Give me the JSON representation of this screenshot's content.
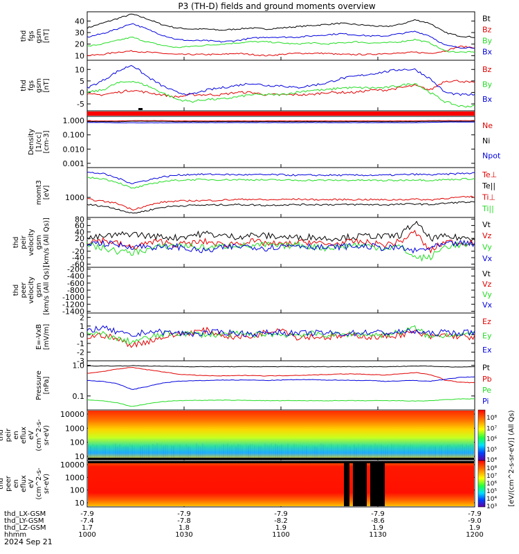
{
  "page": {
    "title": "P3 (TH-D) fields and ground moments overview",
    "date_label": "2024 Sep 21",
    "colors": {
      "black": "#000000",
      "red": "#e00000",
      "green": "#22dd22",
      "blue": "#0000dd",
      "bar_red": "#ff0000"
    }
  },
  "chart_data": [
    {
      "type": "line",
      "panel": "fgs_gsm_nT",
      "ylabel_lines": [
        "thd",
        "fgs",
        "gsm",
        "[nT]"
      ],
      "yticks": [
        "40",
        "30",
        "20",
        "10"
      ],
      "ylim": [
        6,
        48
      ],
      "series": [
        {
          "name": "Bt",
          "color": "#000000",
          "values": [
            34,
            38,
            42,
            46,
            42,
            37,
            34,
            33,
            33,
            32,
            33,
            34,
            33,
            34,
            35,
            36,
            37,
            38,
            37,
            36,
            35,
            37,
            41,
            38,
            30,
            27,
            26
          ]
        },
        {
          "name": "Bz",
          "color": "#e00000",
          "values": [
            10,
            11,
            13,
            14,
            13,
            12,
            11,
            11,
            11,
            11,
            12,
            11,
            10,
            11,
            12,
            12,
            12,
            11,
            11,
            11,
            12,
            12,
            13,
            12,
            14,
            18,
            17
          ]
        },
        {
          "name": "By",
          "color": "#22dd22",
          "values": [
            18,
            20,
            23,
            26,
            22,
            19,
            17,
            18,
            19,
            20,
            21,
            22,
            22,
            21,
            20,
            21,
            20,
            21,
            22,
            21,
            21,
            22,
            24,
            21,
            14,
            13,
            13
          ]
        },
        {
          "name": "Bx",
          "color": "#0000dd",
          "values": [
            26,
            29,
            33,
            38,
            33,
            28,
            24,
            23,
            23,
            22,
            23,
            25,
            26,
            26,
            26,
            27,
            28,
            29,
            28,
            27,
            27,
            29,
            31,
            27,
            19,
            17,
            17
          ]
        }
      ]
    },
    {
      "type": "line",
      "panel": "fgs_gsm_nT_components",
      "ylabel_lines": [
        "thd",
        "fgs",
        "gsm",
        "[nT]"
      ],
      "yticks": [
        "10",
        "5",
        "0",
        "-5"
      ],
      "ylim": [
        -8,
        14
      ],
      "series": [
        {
          "name": "Bz",
          "color": "#e00000",
          "values": [
            -1,
            -1,
            0,
            1,
            0,
            -1,
            -2,
            -1,
            -1,
            -1,
            0,
            0,
            -1,
            -1,
            -1,
            -1,
            0,
            0,
            0,
            1,
            1,
            2,
            3,
            1,
            5,
            5,
            4
          ]
        },
        {
          "name": "By",
          "color": "#22dd22",
          "values": [
            0,
            1,
            4,
            5,
            3,
            0,
            -3,
            -4,
            -3,
            -3,
            -2,
            -1,
            -1,
            -1,
            0,
            1,
            1,
            2,
            2,
            2,
            2,
            3,
            4,
            0,
            -4,
            -6,
            -6
          ]
        },
        {
          "name": "Bx",
          "color": "#0000dd",
          "values": [
            2,
            5,
            9,
            12,
            7,
            3,
            0,
            -1,
            1,
            2,
            3,
            4,
            3,
            3,
            2,
            3,
            4,
            6,
            7,
            8,
            9,
            10,
            10,
            6,
            0,
            -1,
            -1
          ]
        }
      ]
    },
    {
      "type": "line",
      "panel": "density",
      "ylabel_lines": [
        "Density",
        "[1/cc]",
        "[cm-3]"
      ],
      "yticks": [
        "1.000",
        "0.100",
        "0.010",
        "0.001"
      ],
      "ylim": [
        0.0005,
        2
      ],
      "log": true,
      "series": [
        {
          "name": "Ne",
          "color": "#e00000",
          "values": [
            0.95,
            0.95,
            0.95,
            1.0,
            1.0,
            1.0,
            0.95,
            0.95,
            0.95,
            0.95,
            0.95,
            0.95,
            0.95,
            0.95,
            0.95,
            0.95,
            0.95,
            0.95,
            0.95,
            0.95,
            0.95,
            0.95,
            0.95,
            1.0,
            1.0,
            1.0,
            1.0
          ]
        },
        {
          "name": "Ni",
          "color": "#000000",
          "values": [
            0.85,
            0.85,
            0.85,
            0.9,
            0.9,
            0.9,
            0.85,
            0.85,
            0.85,
            0.85,
            0.85,
            0.85,
            0.85,
            0.85,
            0.85,
            0.85,
            0.85,
            0.85,
            0.85,
            0.85,
            0.85,
            0.85,
            0.85,
            0.9,
            0.9,
            0.9,
            0.9
          ]
        },
        {
          "name": "Npot",
          "color": "#0000dd",
          "values": [
            0.75,
            0.75,
            0.7,
            0.7,
            0.7,
            0.7,
            0.72,
            0.72,
            0.72,
            0.72,
            0.72,
            0.72,
            0.72,
            0.72,
            0.72,
            0.72,
            0.72,
            0.72,
            0.72,
            0.72,
            0.72,
            0.72,
            0.72,
            0.75,
            0.8,
            0.8,
            0.8
          ]
        }
      ]
    },
    {
      "type": "line",
      "panel": "moments_temperature",
      "ylabel_lines": [
        "momt3",
        "[eV]"
      ],
      "yticks": [
        "1000"
      ],
      "ylim": [
        300,
        6000
      ],
      "log": true,
      "series": [
        {
          "name": "Te⊥",
          "color": "#0000dd",
          "values": [
            4500,
            4200,
            3200,
            2300,
            2800,
            3400,
            3800,
            4000,
            4000,
            4000,
            3900,
            3900,
            3900,
            3900,
            3800,
            3800,
            3800,
            3800,
            3800,
            3800,
            3800,
            3900,
            4000,
            3900,
            4000,
            4200,
            4300
          ]
        },
        {
          "name": "Te||",
          "color": "#000000",
          "values": [
            650,
            600,
            500,
            380,
            450,
            550,
            600,
            620,
            630,
            640,
            650,
            640,
            620,
            640,
            650,
            650,
            650,
            650,
            650,
            650,
            640,
            660,
            680,
            650,
            700,
            750,
            750
          ]
        },
        {
          "name": "Ti⊥",
          "color": "#e00000",
          "values": [
            900,
            800,
            700,
            480,
            600,
            750,
            800,
            820,
            830,
            850,
            880,
            900,
            860,
            880,
            900,
            880,
            870,
            880,
            880,
            880,
            860,
            880,
            900,
            860,
            950,
            1000,
            1050
          ]
        },
        {
          "name": "Ti||",
          "color": "#22dd22",
          "values": [
            3300,
            3100,
            2500,
            1700,
            2100,
            2600,
            2800,
            2900,
            2900,
            2900,
            2900,
            2900,
            2850,
            2850,
            2800,
            2800,
            2800,
            2800,
            2800,
            2800,
            2750,
            2800,
            2900,
            2800,
            2900,
            3000,
            3100
          ]
        }
      ]
    },
    {
      "type": "line",
      "panel": "peir_velocity",
      "ylabel_lines": [
        "thd",
        "peir",
        "velocity",
        "gsm",
        "[km/s (All Qs)]"
      ],
      "yticks": [
        "80",
        "60",
        "40",
        "20",
        "0",
        "-20",
        "-40",
        "-60"
      ],
      "ylim": [
        -70,
        85
      ],
      "series": [
        {
          "name": "Vt",
          "color": "#000000",
          "values": [
            20,
            25,
            30,
            35,
            28,
            25,
            22,
            30,
            35,
            28,
            25,
            30,
            28,
            25,
            22,
            25,
            20,
            22,
            25,
            28,
            25,
            30,
            70,
            20,
            25,
            22,
            20
          ]
        },
        {
          "name": "Vz",
          "color": "#e00000",
          "values": [
            10,
            15,
            5,
            -10,
            5,
            10,
            0,
            5,
            10,
            0,
            5,
            10,
            5,
            0,
            5,
            10,
            0,
            5,
            10,
            5,
            0,
            10,
            40,
            -20,
            10,
            5,
            10
          ]
        },
        {
          "name": "Vy",
          "color": "#22dd22",
          "values": [
            0,
            -10,
            -20,
            -25,
            -15,
            -5,
            0,
            -5,
            -10,
            -5,
            0,
            -5,
            0,
            -5,
            0,
            -5,
            -10,
            -5,
            0,
            -5,
            -10,
            -5,
            -40,
            -40,
            -5,
            0,
            -5
          ]
        },
        {
          "name": "Vx",
          "color": "#0000dd",
          "values": [
            5,
            5,
            0,
            -5,
            -5,
            -10,
            -5,
            -15,
            -20,
            -10,
            -5,
            -5,
            -10,
            -5,
            0,
            -5,
            -10,
            -5,
            -5,
            -5,
            -10,
            -10,
            -20,
            -10,
            0,
            5,
            0
          ]
        }
      ]
    },
    {
      "type": "line",
      "panel": "peer_velocity",
      "ylabel_lines": [
        "thd",
        "peer",
        "velocity",
        "gsm",
        "[km/s (All Qs)]"
      ],
      "yticks": [
        "-200",
        "-400",
        "-600",
        "-800",
        "-1000",
        "-1200",
        "-1400"
      ],
      "ylim": [
        -1450,
        -150
      ],
      "series": [
        {
          "name": "Vt",
          "color": "#000000",
          "values": []
        },
        {
          "name": "Vz",
          "color": "#e00000",
          "values": []
        },
        {
          "name": "Vy",
          "color": "#22dd22",
          "values": []
        },
        {
          "name": "Vx",
          "color": "#0000dd",
          "values": []
        }
      ]
    },
    {
      "type": "line",
      "panel": "efield",
      "ylabel_lines": [
        "E=-VxB",
        "[mV/m]"
      ],
      "yticks": [
        "2",
        "1",
        "0",
        "-1",
        "-2",
        "-3"
      ],
      "ylim": [
        -3,
        2.5
      ],
      "series": [
        {
          "name": "Ez",
          "color": "#e00000",
          "values": [
            -0.3,
            0,
            -0.5,
            -1.2,
            -0.8,
            -0.3,
            0,
            0.3,
            0.5,
            0,
            -0.3,
            -0.2,
            0.3,
            0.8,
            -0.3,
            -0.2,
            -0.3,
            -0.2,
            0,
            -0.3,
            -0.2,
            0,
            0.3,
            -0.3,
            0,
            -0.2,
            -0.3
          ]
        },
        {
          "name": "Ey",
          "color": "#22dd22",
          "values": [
            0,
            0.1,
            -0.5,
            -0.8,
            -0.4,
            0,
            0.2,
            0.1,
            0,
            0,
            0.1,
            0,
            0.1,
            0,
            0,
            0.1,
            0,
            0,
            0.1,
            0,
            0,
            0.3,
            0.8,
            -0.3,
            0,
            0.1,
            0
          ]
        },
        {
          "name": "Ex",
          "color": "#0000dd",
          "values": [
            0.5,
            0.8,
            0.3,
            -0.2,
            0.4,
            0.3,
            0.2,
            0.1,
            0.2,
            0.3,
            0.2,
            0.1,
            0.2,
            0.3,
            0.1,
            0.2,
            0.2,
            0.1,
            0.2,
            0.3,
            0.2,
            0.3,
            0.4,
            0.1,
            0.3,
            0.2,
            0.3
          ]
        }
      ]
    },
    {
      "type": "line",
      "panel": "pressure",
      "ylabel_lines": [
        "Pressure",
        "[nPa]"
      ],
      "yticks": [
        "1.0",
        "0.1"
      ],
      "ylim": [
        0.035,
        1.4
      ],
      "log": true,
      "series": [
        {
          "name": "Pt",
          "color": "#000000",
          "values": [
            0.95,
            0.95,
            0.95,
            0.97,
            0.95,
            0.93,
            0.92,
            0.9,
            0.9,
            0.9,
            0.9,
            0.9,
            0.9,
            0.9,
            0.9,
            0.9,
            0.9,
            0.9,
            0.9,
            0.9,
            0.9,
            0.92,
            0.95,
            0.93,
            0.9,
            0.88,
            0.9
          ]
        },
        {
          "name": "Pb",
          "color": "#e00000",
          "values": [
            0.55,
            0.62,
            0.75,
            0.85,
            0.72,
            0.62,
            0.52,
            0.48,
            0.46,
            0.45,
            0.46,
            0.47,
            0.45,
            0.46,
            0.47,
            0.48,
            0.5,
            0.52,
            0.52,
            0.5,
            0.48,
            0.52,
            0.58,
            0.5,
            0.33,
            0.28,
            0.27
          ]
        },
        {
          "name": "Pe",
          "color": "#22dd22",
          "values": [
            0.075,
            0.07,
            0.06,
            0.045,
            0.055,
            0.065,
            0.07,
            0.072,
            0.072,
            0.073,
            0.072,
            0.072,
            0.07,
            0.07,
            0.07,
            0.07,
            0.07,
            0.07,
            0.07,
            0.07,
            0.07,
            0.07,
            0.068,
            0.07,
            0.075,
            0.08,
            0.08
          ]
        },
        {
          "name": "Pi",
          "color": "#0000dd",
          "values": [
            0.32,
            0.3,
            0.25,
            0.16,
            0.2,
            0.26,
            0.3,
            0.31,
            0.32,
            0.33,
            0.33,
            0.33,
            0.32,
            0.33,
            0.34,
            0.34,
            0.33,
            0.33,
            0.32,
            0.32,
            0.3,
            0.31,
            0.32,
            0.3,
            0.35,
            0.4,
            0.42
          ]
        }
      ]
    },
    {
      "type": "heatmap",
      "panel": "peir_en_eflux",
      "ylabel_lines": [
        "thd",
        "peir",
        "en",
        "eflux",
        "eV",
        "(cm^2-s-",
        "sr-eV)"
      ],
      "yticks": [
        "10000",
        "1000",
        "100",
        "10"
      ]
    },
    {
      "type": "heatmap",
      "panel": "peer_en_eflux",
      "ylabel_lines": [
        "thd",
        "peer",
        "en",
        "eflux",
        "eV",
        "(cm^2-s-",
        "sr-eV)"
      ],
      "yticks": [
        "10000",
        "1000",
        "100",
        "10"
      ]
    }
  ],
  "legends": [
    [
      "Bt",
      "Bz",
      "By",
      "Bx"
    ],
    [
      "Bz",
      "By",
      "Bx"
    ],
    [
      "Ne",
      "Ni",
      "Npot"
    ],
    [
      "Te⊥",
      "Te||",
      "Ti⊥",
      "Ti||"
    ],
    [
      "Vt",
      "Vz",
      "Vy",
      "Vx"
    ],
    [
      "Vt",
      "Vz",
      "Vy",
      "Vx"
    ],
    [
      "Ez",
      "Ey",
      "Ex"
    ],
    [
      "Pt",
      "Pb",
      "Pe",
      "Pi"
    ]
  ],
  "colorbar": {
    "label": "[eV/(cm^2-s-sr-eV)] (All Qs)",
    "top_ticks": [
      "10⁸",
      "10⁷",
      "10⁶",
      "10⁵",
      "10⁴"
    ],
    "bottom_ticks": [
      "10⁸",
      "10⁷",
      "10⁶",
      "10⁵",
      "10⁴",
      "10³"
    ]
  },
  "xaxis": {
    "row_labels": [
      "thd_LX-GSM",
      "thd_LY-GSM",
      "thd_LZ-GSM",
      "hhmm"
    ],
    "columns": [
      {
        "lx": "-7.9",
        "ly": "-7.4",
        "lz": "1.7",
        "hhmm": "1000"
      },
      {
        "lx": "-7.9",
        "ly": "-7.8",
        "lz": "1.8",
        "hhmm": "1030"
      },
      {
        "lx": "-7.9",
        "ly": "-8.2",
        "lz": "1.9",
        "hhmm": "1100"
      },
      {
        "lx": "-7.9",
        "ly": "-8.6",
        "lz": "1.9",
        "hhmm": "1130"
      },
      {
        "lx": "-7.9",
        "ly": "-9.0",
        "lz": "1.9",
        "hhmm": "1200"
      }
    ]
  }
}
